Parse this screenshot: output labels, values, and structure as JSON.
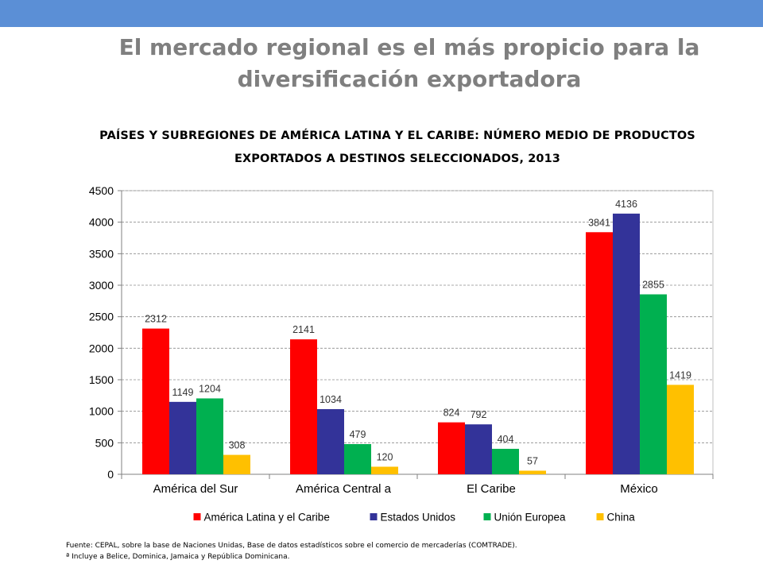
{
  "slide": {
    "title_line1": "El mercado regional es el más propicio para la",
    "title_line2": "diversificación exportadora"
  },
  "chart_data": {
    "type": "bar",
    "title_line1": "PAÍSES Y SUBREGIONES DE AMÉRICA LATINA Y EL CARIBE: NÚMERO MEDIO DE PRODUCTOS",
    "title_line2": "EXPORTADOS  A DESTINOS SELECCIONADOS, 2013",
    "categories": [
      "América del Sur",
      "América Central a",
      "El Caribe",
      "México"
    ],
    "series": [
      {
        "name": "América Latina y el Caribe",
        "color": "#ff0000",
        "values": [
          2312,
          2141,
          824,
          3841
        ]
      },
      {
        "name": "Estados Unidos",
        "color": "#333399",
        "values": [
          1149,
          1034,
          792,
          4136
        ]
      },
      {
        "name": "Unión Europea",
        "color": "#00b050",
        "values": [
          1204,
          479,
          404,
          2855
        ]
      },
      {
        "name": "China",
        "color": "#ffc000",
        "values": [
          308,
          120,
          57,
          1419
        ]
      }
    ],
    "ylim": [
      0,
      4500
    ],
    "yticks": [
      0,
      500,
      1000,
      1500,
      2000,
      2500,
      3000,
      3500,
      4000,
      4500
    ],
    "grid": true,
    "legend": "bottom",
    "xlabel": "",
    "ylabel": ""
  },
  "footer": {
    "source": "Fuente: CEPAL, sobre la base de Naciones Unidas, Base de datos estadísticos sobre el comercio de mercaderías (COMTRADE).",
    "note": "ª Incluye a Belice, Dominica, Jamaica y República Dominicana."
  }
}
